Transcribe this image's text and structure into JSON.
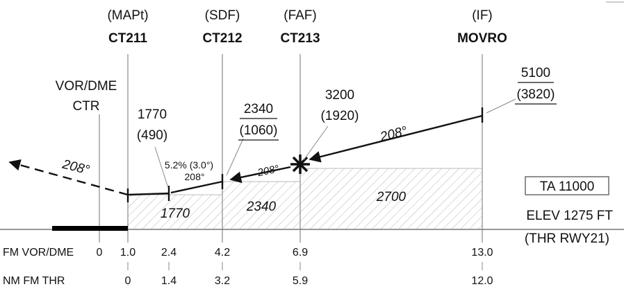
{
  "fixes": [
    {
      "role": "(MAPt)",
      "name": "CT211"
    },
    {
      "role": "(SDF)",
      "name": "CT212"
    },
    {
      "role": "(FAF)",
      "name": "CT213"
    },
    {
      "role": "(IF)",
      "name": "MOVRO"
    }
  ],
  "navaid": {
    "line1": "VOR/DME",
    "line2": "CTR"
  },
  "altitudes": {
    "mapt": {
      "alt": "1770",
      "height": "(490)"
    },
    "sdf": {
      "alt": "2340",
      "height": "(1060)"
    },
    "faf": {
      "alt": "3200",
      "height": "(1920)"
    },
    "if": {
      "alt": "5100",
      "height": "(3820)"
    }
  },
  "tracks": {
    "missed": "208°",
    "initial": "208°",
    "intermediate": "208°",
    "final": "208°"
  },
  "gradient": {
    "line1": "5.2% (3.0°)",
    "line2": "208°"
  },
  "step_minimums": {
    "seg1": "1770",
    "seg2": "2340",
    "seg3": "2700"
  },
  "transition_altitude": "TA 11000",
  "elevation": {
    "line1": "ELEV 1275 FT",
    "line2": "(THR RWY21)"
  },
  "distance_scale": {
    "fm_vor_dme": {
      "label": "FM VOR/DME",
      "values": [
        "0",
        "1.0",
        "2.4",
        "4.2",
        "6.9",
        "13.0"
      ]
    },
    "nm_fm_thr": {
      "label": "NM FM THR",
      "values": [
        "0",
        "1.4",
        "3.2",
        "5.9",
        "12.0"
      ]
    }
  },
  "colors": {
    "ink": "#111111",
    "rule": "#888888",
    "hatch": "#bbbbbb",
    "runway": "#000000"
  }
}
